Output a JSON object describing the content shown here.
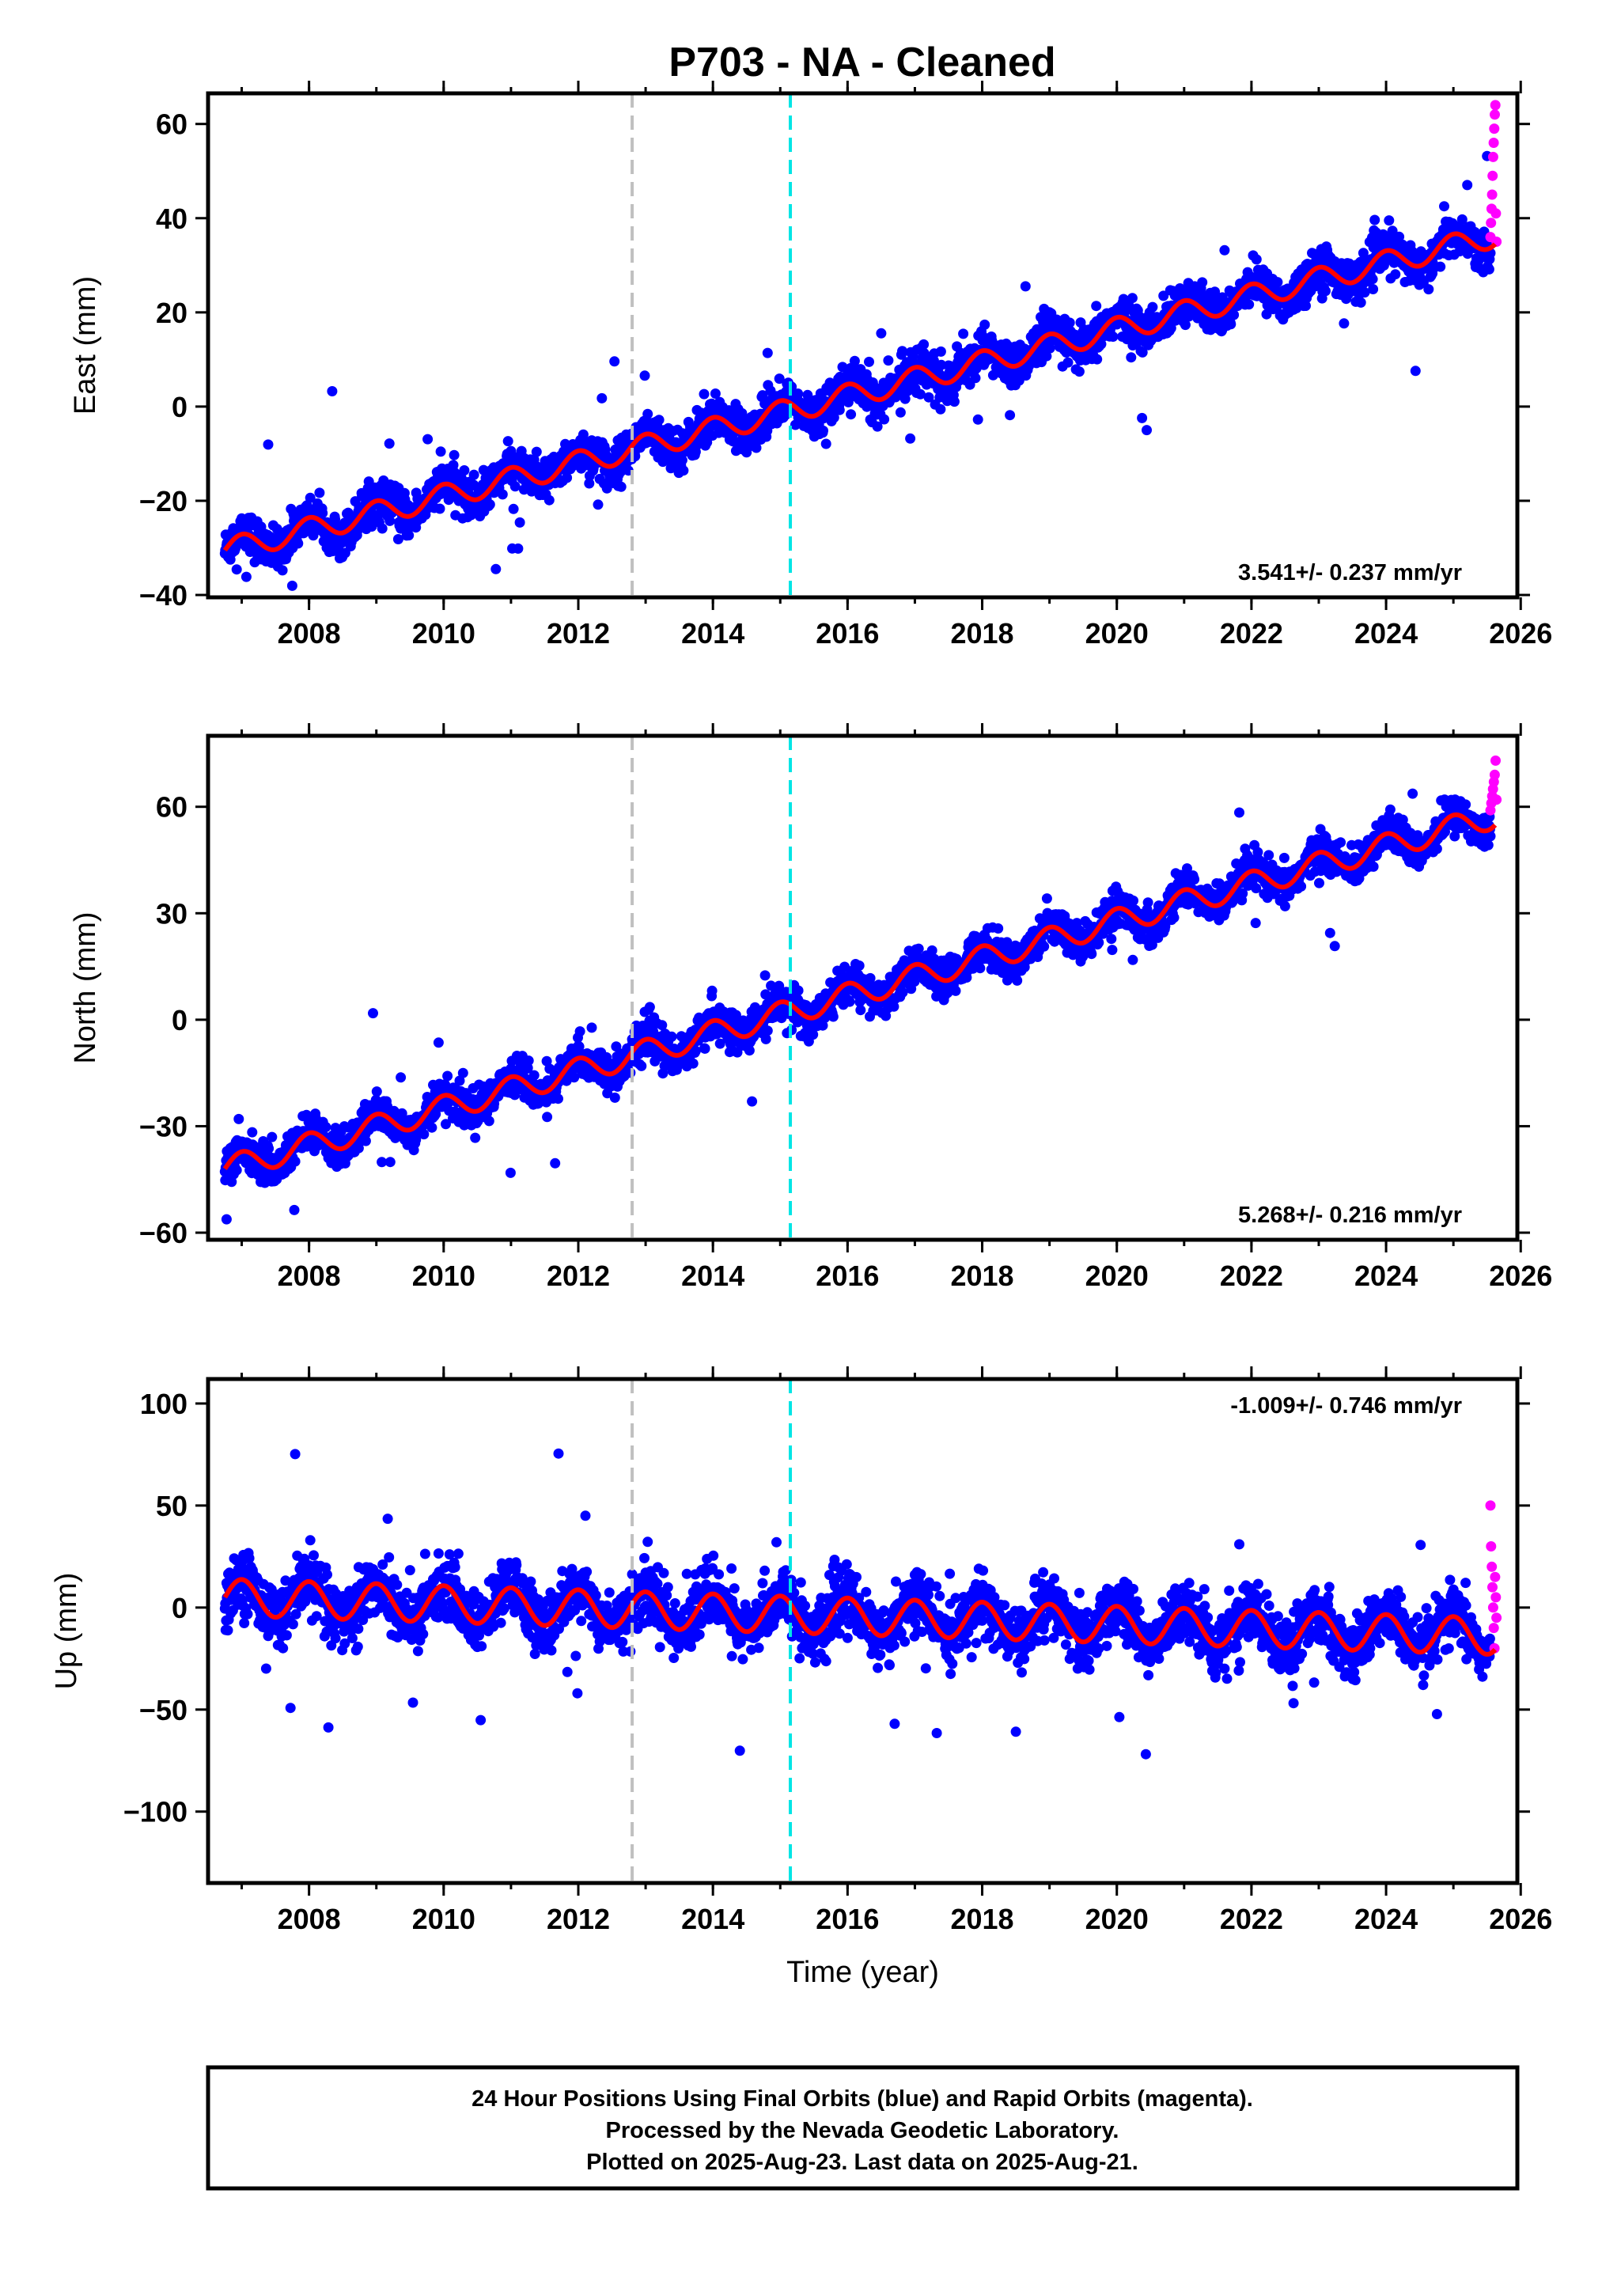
{
  "title": "P703  - NA - Cleaned",
  "colors": {
    "final_orbits": "#0000ff",
    "rapid_orbits": "#ff00ff",
    "model": "#ff0000",
    "event_line_1": "#c0c0c0",
    "event_line_2": "#00e5e5",
    "frame": "#000000"
  },
  "chart_data": [
    {
      "type": "scatter",
      "name": "east",
      "ylabel": "East (mm)",
      "xlim": [
        2006.5,
        2025.95
      ],
      "ylim": [
        -40.5,
        66.5
      ],
      "x_ticks": [
        2008,
        2010,
        2012,
        2014,
        2016,
        2018,
        2020,
        2022,
        2024,
        2026
      ],
      "x_tick_labels": [
        "2008",
        "2010",
        "2012",
        "2014",
        "2016",
        "2018",
        "2020",
        "2022",
        "2024",
        "2026"
      ],
      "y_ticks": [
        -40,
        -20,
        0,
        20,
        40,
        60
      ],
      "y_tick_labels": [
        "−40",
        "−20",
        "0",
        "20",
        "40",
        "60"
      ],
      "rate_text": "3.541+/- 0.237 mm/yr",
      "rate_position": "bottom-right",
      "event_lines": [
        {
          "x": 2012.8,
          "color": "#c0c0c0"
        },
        {
          "x": 2015.15,
          "color": "#00e5e5"
        }
      ],
      "model": {
        "rate": 3.541,
        "y_at_start": -30.5,
        "start": 2006.75,
        "end": 2025.62,
        "annual_amplitude": 2.5
      },
      "scatter": {
        "noise": 2.2,
        "outlier_rate": 0.015
      },
      "rapid_orbits": {
        "start": 2025.55,
        "end": 2025.64,
        "y_values": [
          36,
          39,
          42,
          45,
          49,
          53,
          56,
          59,
          62,
          64,
          41,
          35
        ]
      }
    },
    {
      "type": "scatter",
      "name": "north",
      "ylabel": "North (mm)",
      "xlim": [
        2006.5,
        2025.95
      ],
      "ylim": [
        -62,
        80
      ],
      "x_ticks": [
        2008,
        2010,
        2012,
        2014,
        2016,
        2018,
        2020,
        2022,
        2024,
        2026
      ],
      "x_tick_labels": [
        "2008",
        "2010",
        "2012",
        "2014",
        "2016",
        "2018",
        "2020",
        "2022",
        "2024",
        "2026"
      ],
      "y_ticks": [
        -60,
        -30,
        0,
        30,
        60
      ],
      "y_tick_labels": [
        "−60",
        "−30",
        "0",
        "30",
        "60"
      ],
      "rate_text": "5.268+/- 0.216 mm/yr",
      "rate_position": "bottom-right",
      "event_lines": [
        {
          "x": 2012.8,
          "color": "#c0c0c0"
        },
        {
          "x": 2015.15,
          "color": "#00e5e5"
        }
      ],
      "model": {
        "rate": 5.268,
        "y_at_start": -42,
        "start": 2006.75,
        "end": 2025.62,
        "annual_amplitude": 3.5
      },
      "scatter": {
        "noise": 2.6,
        "outlier_rate": 0.015
      },
      "rapid_orbits": {
        "start": 2025.55,
        "end": 2025.64,
        "y_values": [
          59,
          61,
          63,
          65,
          67,
          69,
          73,
          62
        ]
      }
    },
    {
      "type": "scatter",
      "name": "up",
      "ylabel": "Up (mm)",
      "xlim": [
        2006.5,
        2025.95
      ],
      "ylim": [
        -135,
        112
      ],
      "x_ticks": [
        2008,
        2010,
        2012,
        2014,
        2016,
        2018,
        2020,
        2022,
        2024,
        2026
      ],
      "x_tick_labels": [
        "2008",
        "2010",
        "2012",
        "2014",
        "2016",
        "2018",
        "2020",
        "2022",
        "2024",
        "2026"
      ],
      "y_ticks": [
        -100,
        -50,
        0,
        50,
        100
      ],
      "y_tick_labels": [
        "−100",
        "−50",
        "0",
        "50",
        "100"
      ],
      "xlabel": "Time (year)",
      "rate_text": "-1.009+/- 0.746 mm/yr",
      "rate_position": "top-right",
      "event_lines": [
        {
          "x": 2012.8,
          "color": "#c0c0c0"
        },
        {
          "x": 2015.15,
          "color": "#00e5e5"
        }
      ],
      "model": {
        "rate": -1.009,
        "y_at_start": 5,
        "start": 2006.75,
        "end": 2025.62,
        "annual_amplitude": 9
      },
      "scatter": {
        "noise": 7,
        "outlier_rate": 0.02
      },
      "rapid_orbits": {
        "start": 2025.55,
        "end": 2025.64,
        "y_values": [
          50,
          30,
          20,
          10,
          0,
          -10,
          -20,
          15,
          5,
          -5
        ]
      }
    }
  ],
  "footer": {
    "line1": "24 Hour Positions Using Final Orbits (blue) and Rapid Orbits (magenta).",
    "line2": "Processed by the Nevada Geodetic Laboratory.",
    "line3": "Plotted on 2025-Aug-23. Last data on 2025-Aug-21."
  }
}
